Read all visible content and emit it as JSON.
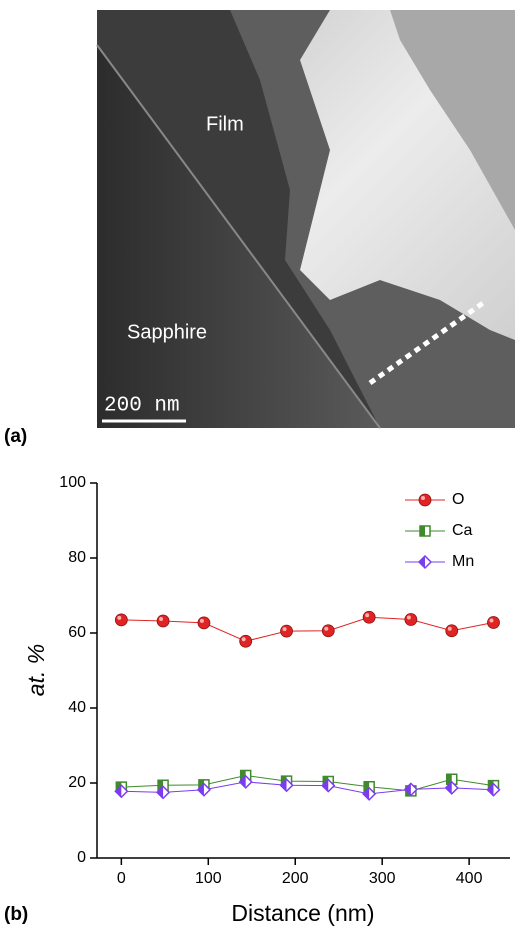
{
  "panel_a": {
    "label": "(a)",
    "film": "Film",
    "substrate": "Sapphire",
    "scale_bar": "200 nm"
  },
  "chart_data": {
    "type": "line",
    "panel_label": "(b)",
    "x_label": "Distance (nm)",
    "y_label": "at. %",
    "x": [
      0,
      48,
      95,
      143,
      190,
      238,
      285,
      333,
      380,
      428
    ],
    "series": [
      {
        "name": "O",
        "color": "#e02424",
        "marker": "circle",
        "values": [
          63.5,
          63.2,
          62.7,
          57.8,
          60.5,
          60.6,
          64.2,
          63.6,
          60.6,
          62.8
        ]
      },
      {
        "name": "Ca",
        "color": "#3f8a2c",
        "marker": "square",
        "values": [
          18.9,
          19.4,
          19.5,
          22.0,
          20.5,
          20.4,
          19.0,
          17.9,
          21.0,
          19.3
        ]
      },
      {
        "name": "Mn",
        "color": "#7b3cf0",
        "marker": "diamond",
        "values": [
          17.8,
          17.5,
          18.2,
          20.3,
          19.4,
          19.3,
          17.1,
          18.3,
          18.7,
          18.2
        ]
      }
    ],
    "xlim": [
      -28,
      447
    ],
    "ylim": [
      0,
      100
    ],
    "xticks": [
      0,
      100,
      200,
      300,
      400
    ],
    "yticks": [
      0,
      20,
      40,
      60,
      80,
      100
    ],
    "legend": "upper-right"
  }
}
